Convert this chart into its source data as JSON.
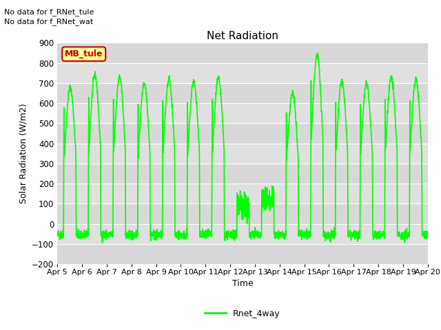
{
  "title": "Net Radiation",
  "xlabel": "Time",
  "ylabel": "Solar Radiation (W/m2)",
  "ylim": [
    -200,
    900
  ],
  "yticks": [
    -200,
    -100,
    0,
    100,
    200,
    300,
    400,
    500,
    600,
    700,
    800,
    900
  ],
  "xtick_labels": [
    "Apr 5",
    "Apr 6",
    "Apr 7",
    "Apr 8",
    "Apr 9",
    "Apr 10",
    "Apr 11",
    "Apr 12",
    "Apr 13",
    "Apr 14",
    "Apr 15",
    "Apr 16",
    "Apr 17",
    "Apr 18",
    "Apr 19",
    "Apr 20"
  ],
  "line_color": "#00ff00",
  "line_width": 1.2,
  "legend_label": "Rnet_4way",
  "annotation1": "No data for f_RNet_tule",
  "annotation2": "No data for f_RNet_wat",
  "box_label": "MB_tule",
  "plot_bg_color": "#e8e8e8",
  "band_color_light": "#d8d8d8",
  "band_color_dark": "#e8e8e8",
  "title_fontsize": 11,
  "axis_fontsize": 9,
  "tick_fontsize": 8.5,
  "annot_fontsize": 8
}
